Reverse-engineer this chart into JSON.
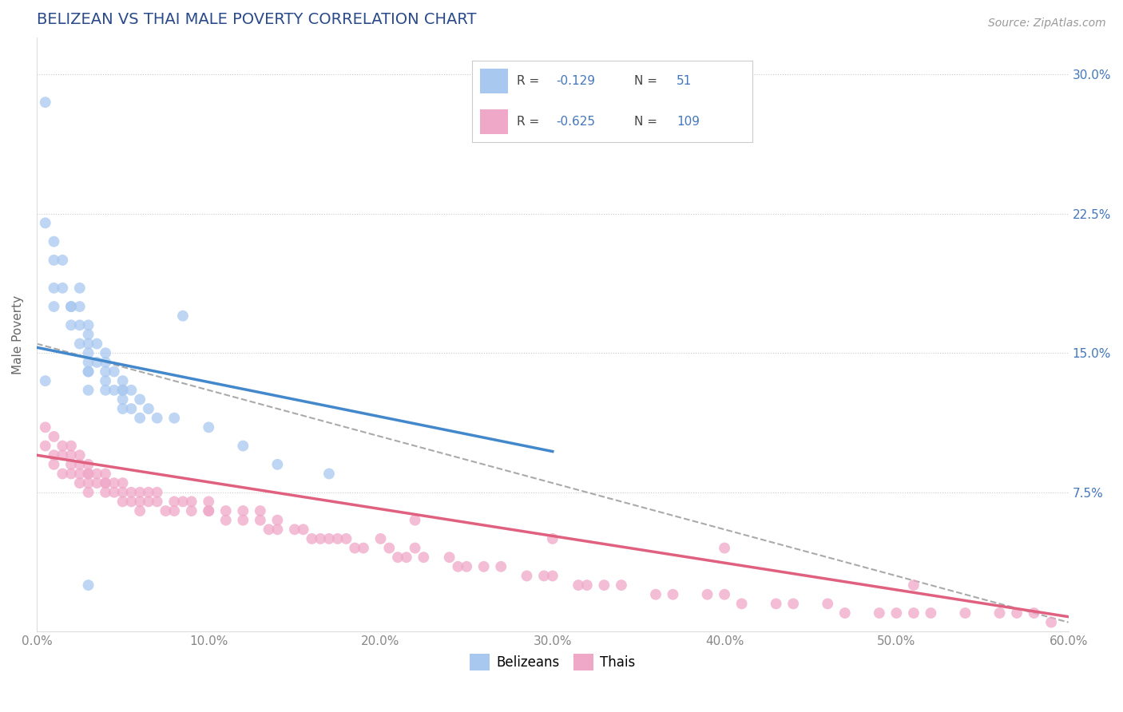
{
  "title": "BELIZEAN VS THAI MALE POVERTY CORRELATION CHART",
  "source": "Source: ZipAtlas.com",
  "ylabel": "Male Poverty",
  "xlim": [
    0.0,
    0.6
  ],
  "ylim": [
    0.0,
    0.32
  ],
  "xticks": [
    0.0,
    0.1,
    0.2,
    0.3,
    0.4,
    0.5,
    0.6
  ],
  "xticklabels": [
    "0.0%",
    "10.0%",
    "20.0%",
    "30.0%",
    "40.0%",
    "50.0%",
    "60.0%"
  ],
  "yticks": [
    0.0,
    0.075,
    0.15,
    0.225,
    0.3
  ],
  "yticklabels_right": [
    "",
    "7.5%",
    "15.0%",
    "22.5%",
    "30.0%"
  ],
  "belizean_color": "#a8c8f0",
  "thai_color": "#f0a8c8",
  "belizean_line_color": "#4488cc",
  "thai_line_color": "#e06080",
  "trend_line_color": "#aaaaaa",
  "background_color": "#ffffff",
  "grid_color": "#cccccc",
  "title_color": "#2a4a8a",
  "label_color": "#4477bb",
  "tick_color": "#888888",
  "belizean_x": [
    0.005,
    0.005,
    0.01,
    0.01,
    0.01,
    0.01,
    0.015,
    0.015,
    0.02,
    0.02,
    0.02,
    0.025,
    0.025,
    0.025,
    0.025,
    0.03,
    0.03,
    0.03,
    0.03,
    0.03,
    0.03,
    0.035,
    0.035,
    0.04,
    0.04,
    0.04,
    0.04,
    0.045,
    0.045,
    0.05,
    0.05,
    0.05,
    0.05,
    0.055,
    0.055,
    0.06,
    0.06,
    0.065,
    0.07,
    0.08,
    0.085,
    0.1,
    0.12,
    0.14,
    0.17,
    0.005,
    0.03,
    0.03,
    0.04,
    0.05,
    0.03
  ],
  "belizean_y": [
    0.285,
    0.22,
    0.21,
    0.2,
    0.185,
    0.175,
    0.2,
    0.185,
    0.175,
    0.175,
    0.165,
    0.185,
    0.175,
    0.165,
    0.155,
    0.165,
    0.16,
    0.155,
    0.15,
    0.145,
    0.14,
    0.155,
    0.145,
    0.15,
    0.145,
    0.14,
    0.13,
    0.14,
    0.13,
    0.135,
    0.13,
    0.125,
    0.12,
    0.13,
    0.12,
    0.125,
    0.115,
    0.12,
    0.115,
    0.115,
    0.17,
    0.11,
    0.1,
    0.09,
    0.085,
    0.135,
    0.14,
    0.13,
    0.135,
    0.13,
    0.025
  ],
  "thai_x": [
    0.005,
    0.005,
    0.01,
    0.01,
    0.01,
    0.015,
    0.015,
    0.015,
    0.02,
    0.02,
    0.02,
    0.02,
    0.025,
    0.025,
    0.025,
    0.025,
    0.03,
    0.03,
    0.03,
    0.03,
    0.03,
    0.035,
    0.035,
    0.04,
    0.04,
    0.04,
    0.04,
    0.045,
    0.045,
    0.05,
    0.05,
    0.05,
    0.055,
    0.055,
    0.06,
    0.06,
    0.06,
    0.065,
    0.065,
    0.07,
    0.07,
    0.075,
    0.08,
    0.08,
    0.085,
    0.09,
    0.09,
    0.1,
    0.1,
    0.11,
    0.11,
    0.12,
    0.12,
    0.13,
    0.13,
    0.135,
    0.14,
    0.14,
    0.15,
    0.155,
    0.16,
    0.165,
    0.17,
    0.175,
    0.18,
    0.185,
    0.19,
    0.2,
    0.205,
    0.21,
    0.215,
    0.22,
    0.225,
    0.24,
    0.245,
    0.25,
    0.26,
    0.27,
    0.285,
    0.295,
    0.3,
    0.315,
    0.32,
    0.33,
    0.34,
    0.36,
    0.37,
    0.39,
    0.4,
    0.41,
    0.43,
    0.44,
    0.46,
    0.47,
    0.49,
    0.5,
    0.51,
    0.52,
    0.54,
    0.56,
    0.57,
    0.58,
    0.59,
    0.1,
    0.22,
    0.3,
    0.4,
    0.51
  ],
  "thai_y": [
    0.11,
    0.1,
    0.105,
    0.095,
    0.09,
    0.1,
    0.095,
    0.085,
    0.1,
    0.095,
    0.09,
    0.085,
    0.095,
    0.09,
    0.085,
    0.08,
    0.09,
    0.085,
    0.08,
    0.075,
    0.085,
    0.085,
    0.08,
    0.085,
    0.08,
    0.075,
    0.08,
    0.08,
    0.075,
    0.08,
    0.075,
    0.07,
    0.075,
    0.07,
    0.075,
    0.07,
    0.065,
    0.075,
    0.07,
    0.075,
    0.07,
    0.065,
    0.07,
    0.065,
    0.07,
    0.065,
    0.07,
    0.07,
    0.065,
    0.065,
    0.06,
    0.065,
    0.06,
    0.065,
    0.06,
    0.055,
    0.06,
    0.055,
    0.055,
    0.055,
    0.05,
    0.05,
    0.05,
    0.05,
    0.05,
    0.045,
    0.045,
    0.05,
    0.045,
    0.04,
    0.04,
    0.045,
    0.04,
    0.04,
    0.035,
    0.035,
    0.035,
    0.035,
    0.03,
    0.03,
    0.03,
    0.025,
    0.025,
    0.025,
    0.025,
    0.02,
    0.02,
    0.02,
    0.02,
    0.015,
    0.015,
    0.015,
    0.015,
    0.01,
    0.01,
    0.01,
    0.01,
    0.01,
    0.01,
    0.01,
    0.01,
    0.01,
    0.005,
    0.065,
    0.06,
    0.05,
    0.045,
    0.025
  ],
  "belizean_line_x0": 0.0,
  "belizean_line_y0": 0.153,
  "belizean_line_x1": 0.3,
  "belizean_line_y1": 0.097,
  "thai_line_x0": 0.0,
  "thai_line_y0": 0.095,
  "thai_line_x1": 0.6,
  "thai_line_y1": 0.008,
  "gray_line_x0": 0.0,
  "gray_line_y0": 0.155,
  "gray_line_x1": 0.6,
  "gray_line_y1": 0.005
}
